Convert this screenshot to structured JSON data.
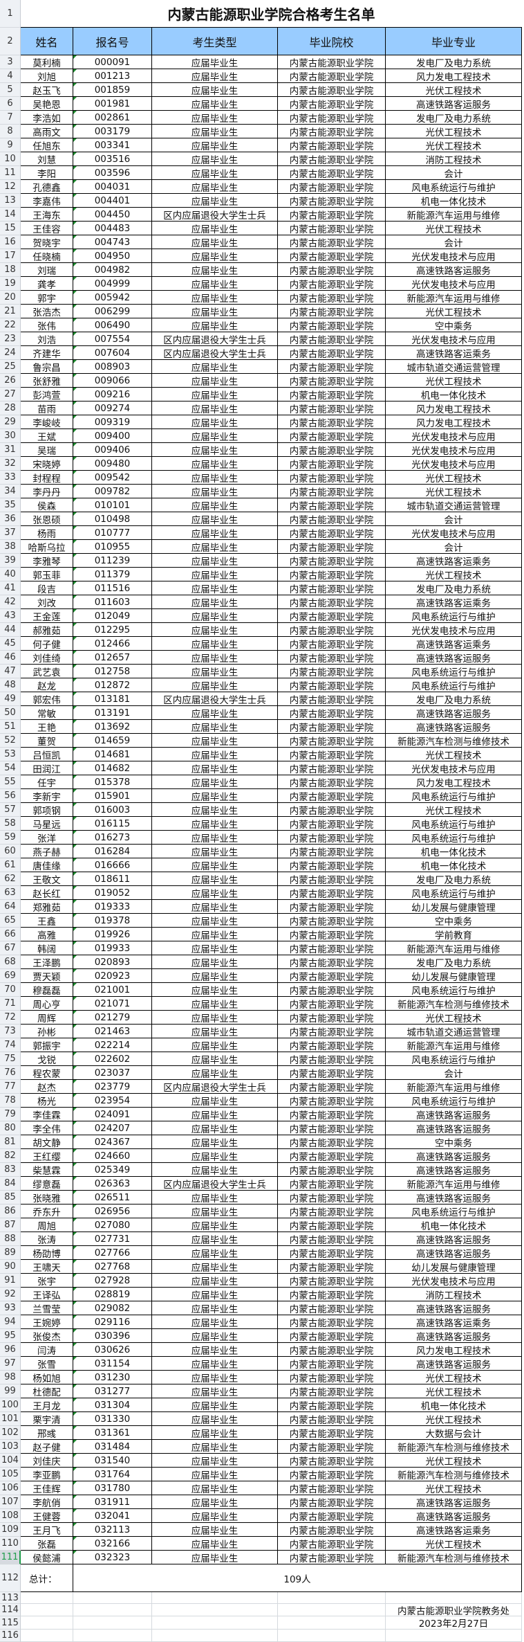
{
  "title": "内蒙古能源职业学院合格考生名单",
  "headers": [
    "姓名",
    "报名号",
    "考生类型",
    "毕业院校",
    "毕业专业"
  ],
  "colors": {
    "header_bg": "#99ccff",
    "active_row": "#1e9c4a",
    "comment_marker": "#1e8c2e"
  },
  "rows": [
    [
      3,
      "莫利楠",
      "000091",
      "应届毕业生",
      "内蒙古能源职业学院",
      "发电厂及电力系统"
    ],
    [
      4,
      "刘旭",
      "001213",
      "应届毕业生",
      "内蒙古能源职业学院",
      "风力发电工程技术"
    ],
    [
      5,
      "赵玉飞",
      "001859",
      "应届毕业生",
      "内蒙古能源职业学院",
      "光伏工程技术"
    ],
    [
      6,
      "吴艳恩",
      "001981",
      "应届毕业生",
      "内蒙古能源职业学院",
      "高速铁路客运服务"
    ],
    [
      7,
      "李浩如",
      "002861",
      "应届毕业生",
      "内蒙古能源职业学院",
      "发电厂及电力系统"
    ],
    [
      8,
      "高雨文",
      "003179",
      "应届毕业生",
      "内蒙古能源职业学院",
      "光伏工程技术"
    ],
    [
      9,
      "任旭东",
      "003341",
      "应届毕业生",
      "内蒙古能源职业学院",
      "光伏工程技术"
    ],
    [
      10,
      "刘慧",
      "003516",
      "应届毕业生",
      "内蒙古能源职业学院",
      "消防工程技术"
    ],
    [
      11,
      "李阳",
      "003596",
      "应届毕业生",
      "内蒙古能源职业学院",
      "会计"
    ],
    [
      12,
      "孔德鑫",
      "004031",
      "应届毕业生",
      "内蒙古能源职业学院",
      "风电系统运行与维护"
    ],
    [
      13,
      "李嘉伟",
      "004401",
      "应届毕业生",
      "内蒙古能源职业学院",
      "机电一体化技术"
    ],
    [
      14,
      "王海东",
      "004450",
      "区内应届退役大学生士兵",
      "内蒙古能源职业学院",
      "新能源汽车运用与维修"
    ],
    [
      15,
      "王佳容",
      "004483",
      "应届毕业生",
      "内蒙古能源职业学院",
      "光伏工程技术"
    ],
    [
      16,
      "贺晓宇",
      "004743",
      "应届毕业生",
      "内蒙古能源职业学院",
      "会计"
    ],
    [
      17,
      "任晓楠",
      "004950",
      "应届毕业生",
      "内蒙古能源职业学院",
      "光伏发电技术与应用"
    ],
    [
      18,
      "刘瑞",
      "004982",
      "应届毕业生",
      "内蒙古能源职业学院",
      "高速铁路客运服务"
    ],
    [
      19,
      "龚孝",
      "004999",
      "应届毕业生",
      "内蒙古能源职业学院",
      "光伏发电技术与应用"
    ],
    [
      20,
      "郭宇",
      "005942",
      "应届毕业生",
      "内蒙古能源职业学院",
      "新能源汽车运用与维修"
    ],
    [
      21,
      "张浩杰",
      "006299",
      "应届毕业生",
      "内蒙古能源职业学院",
      "光伏工程技术"
    ],
    [
      22,
      "张伟",
      "006490",
      "应届毕业生",
      "内蒙古能源职业学院",
      "空中乘务"
    ],
    [
      23,
      "刘浩",
      "007554",
      "区内应届退役大学生士兵",
      "内蒙古能源职业学院",
      "光伏发电技术与应用"
    ],
    [
      24,
      "齐建华",
      "007604",
      "区内应届退役大学生士兵",
      "内蒙古能源职业学院",
      "高速铁路客运乘务"
    ],
    [
      25,
      "鲁宗昌",
      "008903",
      "应届毕业生",
      "内蒙古能源职业学院",
      "城市轨道交通运营管理"
    ],
    [
      26,
      "张舒雅",
      "009066",
      "应届毕业生",
      "内蒙古能源职业学院",
      "光伏工程技术"
    ],
    [
      27,
      "彭鸿萱",
      "009216",
      "应届毕业生",
      "内蒙古能源职业学院",
      "机电一体化技术"
    ],
    [
      28,
      "苗雨",
      "009274",
      "应届毕业生",
      "内蒙古能源职业学院",
      "风力发电工程技术"
    ],
    [
      29,
      "李峻岐",
      "009319",
      "应届毕业生",
      "内蒙古能源职业学院",
      "风力发电工程技术"
    ],
    [
      30,
      "王斌",
      "009400",
      "应届毕业生",
      "内蒙古能源职业学院",
      "光伏发电技术与应用"
    ],
    [
      31,
      "吴瑞",
      "009406",
      "应届毕业生",
      "内蒙古能源职业学院",
      "光伏发电技术与应用"
    ],
    [
      32,
      "宋晓婷",
      "009480",
      "应届毕业生",
      "内蒙古能源职业学院",
      "光伏发电技术与应用"
    ],
    [
      33,
      "封程程",
      "009542",
      "应届毕业生",
      "内蒙古能源职业学院",
      "光伏工程技术"
    ],
    [
      34,
      "李丹丹",
      "009782",
      "应届毕业生",
      "内蒙古能源职业学院",
      "光伏工程技术"
    ],
    [
      35,
      "侯森",
      "010101",
      "应届毕业生",
      "内蒙古能源职业学院",
      "城市轨道交通运营管理"
    ],
    [
      36,
      "张恩硕",
      "010498",
      "应届毕业生",
      "内蒙古能源职业学院",
      "会计"
    ],
    [
      37,
      "杨雨",
      "010777",
      "应届毕业生",
      "内蒙古能源职业学院",
      "光伏发电技术与应用"
    ],
    [
      38,
      "哈斯乌拉",
      "010955",
      "应届毕业生",
      "内蒙古能源职业学院",
      "会计"
    ],
    [
      39,
      "李雅琴",
      "011239",
      "应届毕业生",
      "内蒙古能源职业学院",
      "高速铁路客运乘务"
    ],
    [
      40,
      "郭玉菲",
      "011379",
      "应届毕业生",
      "内蒙古能源职业学院",
      "光伏工程技术"
    ],
    [
      41,
      "段吉",
      "011516",
      "应届毕业生",
      "内蒙古能源职业学院",
      "发电厂及电力系统"
    ],
    [
      42,
      "刘改",
      "011603",
      "应届毕业生",
      "内蒙古能源职业学院",
      "高速铁路客运乘务"
    ],
    [
      43,
      "王金莲",
      "012049",
      "应届毕业生",
      "内蒙古能源职业学院",
      "风电系统运行与维护"
    ],
    [
      44,
      "郝雅茹",
      "012295",
      "应届毕业生",
      "内蒙古能源职业学院",
      "光伏发电技术与应用"
    ],
    [
      45,
      "何子健",
      "012466",
      "应届毕业生",
      "内蒙古能源职业学院",
      "高速铁路客运乘务"
    ],
    [
      46,
      "刘佳绮",
      "012657",
      "应届毕业生",
      "内蒙古能源职业学院",
      "高速铁路客运服务"
    ],
    [
      47,
      "武艺袁",
      "012758",
      "应届毕业生",
      "内蒙古能源职业学院",
      "风电系统运行与维护"
    ],
    [
      48,
      "赵龙",
      "012872",
      "应届毕业生",
      "内蒙古能源职业学院",
      "风电系统运行与维护"
    ],
    [
      49,
      "郭宏伟",
      "013181",
      "区内应届退役大学生士兵",
      "内蒙古能源职业学院",
      "发电厂及电力系统"
    ],
    [
      50,
      "常敏",
      "013191",
      "应届毕业生",
      "内蒙古能源职业学院",
      "高速铁路客运服务"
    ],
    [
      51,
      "王艳",
      "013692",
      "应届毕业生",
      "内蒙古能源职业学院",
      "高速铁路客运服务"
    ],
    [
      52,
      "董贺",
      "014659",
      "应届毕业生",
      "内蒙古能源职业学院",
      "新能源汽车检测与维修技术"
    ],
    [
      53,
      "吕恒凯",
      "014681",
      "应届毕业生",
      "内蒙古能源职业学院",
      "光伏工程技术"
    ],
    [
      54,
      "田润江",
      "014682",
      "应届毕业生",
      "内蒙古能源职业学院",
      "光伏发电技术与应用"
    ],
    [
      55,
      "任宇",
      "015378",
      "应届毕业生",
      "内蒙古能源职业学院",
      "风力发电工程技术"
    ],
    [
      56,
      "李新宇",
      "015901",
      "应届毕业生",
      "内蒙古能源职业学院",
      "风电系统运行与维护"
    ],
    [
      57,
      "郭项钢",
      "016003",
      "应届毕业生",
      "内蒙古能源职业学院",
      "光伏工程技术"
    ],
    [
      58,
      "马星远",
      "016115",
      "应届毕业生",
      "内蒙古能源职业学院",
      "风电系统运行与维护"
    ],
    [
      59,
      "张洋",
      "016273",
      "应届毕业生",
      "内蒙古能源职业学院",
      "风电系统运行与维护"
    ],
    [
      60,
      "燕子赫",
      "016284",
      "应届毕业生",
      "内蒙古能源职业学院",
      "机电一体化技术"
    ],
    [
      61,
      "唐佳缘",
      "016666",
      "应届毕业生",
      "内蒙古能源职业学院",
      "机电一体化技术"
    ],
    [
      62,
      "王敬文",
      "018611",
      "应届毕业生",
      "内蒙古能源职业学院",
      "发电厂及电力系统"
    ],
    [
      63,
      "赵长红",
      "019052",
      "应届毕业生",
      "内蒙古能源职业学院",
      "风电系统运行与维护"
    ],
    [
      64,
      "郑雅茹",
      "019333",
      "应届毕业生",
      "内蒙古能源职业学院",
      "幼儿发展与健康管理"
    ],
    [
      65,
      "王鑫",
      "019378",
      "应届毕业生",
      "内蒙古能源职业学院",
      "空中乘务"
    ],
    [
      66,
      "高雅",
      "019926",
      "应届毕业生",
      "内蒙古能源职业学院",
      "学前教育"
    ],
    [
      67,
      "韩阔",
      "019933",
      "应届毕业生",
      "内蒙古能源职业学院",
      "新能源汽车运用与维修"
    ],
    [
      68,
      "王泽鹏",
      "020893",
      "应届毕业生",
      "内蒙古能源职业学院",
      "发电厂及电力系统"
    ],
    [
      69,
      "贾天颖",
      "020923",
      "应届毕业生",
      "内蒙古能源职业学院",
      "幼儿发展与健康管理"
    ],
    [
      70,
      "穆磊磊",
      "021001",
      "应届毕业生",
      "内蒙古能源职业学院",
      "风电系统运行与维护"
    ],
    [
      71,
      "周心亨",
      "021071",
      "应届毕业生",
      "内蒙古能源职业学院",
      "新能源汽车检测与维修技术"
    ],
    [
      72,
      "周辉",
      "021279",
      "应届毕业生",
      "内蒙古能源职业学院",
      "光伏工程技术"
    ],
    [
      73,
      "孙彬",
      "021463",
      "应届毕业生",
      "内蒙古能源职业学院",
      "城市轨道交通运营管理"
    ],
    [
      74,
      "郭振宇",
      "022214",
      "应届毕业生",
      "内蒙古能源职业学院",
      "新能源汽车运用与维修"
    ],
    [
      75,
      "戈锐",
      "022602",
      "应届毕业生",
      "内蒙古能源职业学院",
      "风电系统运行与维护"
    ],
    [
      76,
      "程农蒙",
      "023037",
      "应届毕业生",
      "内蒙古能源职业学院",
      "会计"
    ],
    [
      77,
      "赵杰",
      "023779",
      "区内应届退役大学生士兵",
      "内蒙古能源职业学院",
      "新能源汽车运用与维修"
    ],
    [
      78,
      "杨光",
      "023954",
      "应届毕业生",
      "内蒙古能源职业学院",
      "风电系统运行与维护"
    ],
    [
      79,
      "李佳霖",
      "024091",
      "应届毕业生",
      "内蒙古能源职业学院",
      "高速铁路客运服务"
    ],
    [
      80,
      "李全伟",
      "024207",
      "应届毕业生",
      "内蒙古能源职业学院",
      "高速铁路客运服务"
    ],
    [
      81,
      "胡文静",
      "024367",
      "应届毕业生",
      "内蒙古能源职业学院",
      "空中乘务"
    ],
    [
      82,
      "王红缨",
      "024660",
      "应届毕业生",
      "内蒙古能源职业学院",
      "高速铁路客运服务"
    ],
    [
      83,
      "柴慧霖",
      "025349",
      "应届毕业生",
      "内蒙古能源职业学院",
      "高速铁路客运服务"
    ],
    [
      84,
      "缪意磊",
      "026363",
      "区内应届退役大学生士兵",
      "内蒙古能源职业学院",
      "新能源汽车运用与维修"
    ],
    [
      85,
      "张晓雅",
      "026511",
      "应届毕业生",
      "内蒙古能源职业学院",
      "高速铁路客运服务"
    ],
    [
      86,
      "乔东升",
      "026956",
      "应届毕业生",
      "内蒙古能源职业学院",
      "风电系统运行与维护"
    ],
    [
      87,
      "周旭",
      "027080",
      "应届毕业生",
      "内蒙古能源职业学院",
      "机电一体化技术"
    ],
    [
      88,
      "张涛",
      "027731",
      "应届毕业生",
      "内蒙古能源职业学院",
      "高速铁路客运服务"
    ],
    [
      89,
      "杨劭博",
      "027766",
      "应届毕业生",
      "内蒙古能源职业学院",
      "高速铁路客运服务"
    ],
    [
      90,
      "王啸天",
      "027768",
      "应届毕业生",
      "内蒙古能源职业学院",
      "幼儿发展与健康管理"
    ],
    [
      91,
      "张宇",
      "027928",
      "应届毕业生",
      "内蒙古能源职业学院",
      "光伏发电技术与应用"
    ],
    [
      92,
      "王译弘",
      "028819",
      "应届毕业生",
      "内蒙古能源职业学院",
      "消防工程技术"
    ],
    [
      93,
      "兰雪莹",
      "029082",
      "应届毕业生",
      "内蒙古能源职业学院",
      "高速铁路客运服务"
    ],
    [
      94,
      "王婉婷",
      "029116",
      "应届毕业生",
      "内蒙古能源职业学院",
      "高速铁路客运乘务"
    ],
    [
      95,
      "张俊杰",
      "030396",
      "应届毕业生",
      "内蒙古能源职业学院",
      "高速铁路客运服务"
    ],
    [
      96,
      "闫涛",
      "030626",
      "应届毕业生",
      "内蒙古能源职业学院",
      "风力发电工程技术"
    ],
    [
      97,
      "张雪",
      "031154",
      "应届毕业生",
      "内蒙古能源职业学院",
      "高速铁路客运服务"
    ],
    [
      98,
      "杨如旭",
      "031230",
      "应届毕业生",
      "内蒙古能源职业学院",
      "光伏工程技术"
    ],
    [
      99,
      "杜德配",
      "031277",
      "应届毕业生",
      "内蒙古能源职业学院",
      "光伏工程技术"
    ],
    [
      100,
      "王月龙",
      "031304",
      "应届毕业生",
      "内蒙古能源职业学院",
      "机电一体化技术"
    ],
    [
      101,
      "栗宇清",
      "031330",
      "应届毕业生",
      "内蒙古能源职业学院",
      "光伏工程技术"
    ],
    [
      102,
      "邢彧",
      "031361",
      "应届毕业生",
      "内蒙古能源职业学院",
      "大数据与会计"
    ],
    [
      103,
      "赵子健",
      "031484",
      "应届毕业生",
      "内蒙古能源职业学院",
      "新能源汽车检测与维修技术"
    ],
    [
      104,
      "刘佳庆",
      "031540",
      "应届毕业生",
      "内蒙古能源职业学院",
      "光伏工程技术"
    ],
    [
      105,
      "李亚鹏",
      "031764",
      "应届毕业生",
      "内蒙古能源职业学院",
      "新能源汽车检测与维修技术"
    ],
    [
      106,
      "王佳辉",
      "031780",
      "应届毕业生",
      "内蒙古能源职业学院",
      "光伏工程技术"
    ],
    [
      107,
      "李航俏",
      "031911",
      "应届毕业生",
      "内蒙古能源职业学院",
      "高速铁路客运服务"
    ],
    [
      108,
      "王健蓉",
      "032041",
      "应届毕业生",
      "内蒙古能源职业学院",
      "高速铁路客运服务"
    ],
    [
      109,
      "王月飞",
      "032113",
      "应届毕业生",
      "内蒙古能源职业学院",
      "高速铁路客运乘务"
    ],
    [
      110,
      "张磊",
      "032166",
      "应届毕业生",
      "内蒙古能源职业学院",
      "光伏工程技术"
    ],
    [
      111,
      "侯懿浦",
      "032323",
      "应届毕业生",
      "内蒙古能源职业学院",
      "新能源汽车检测与维修技术"
    ]
  ],
  "row_numbers": {
    "title": "1",
    "header": "2",
    "total": "112",
    "blank1": "113",
    "signature": "114",
    "date": "115",
    "blank2": "116"
  },
  "total": {
    "label": "总计：",
    "value": "109人"
  },
  "footer": {
    "office": "内蒙古能源职业学院教务处",
    "date": "2023年2月27日"
  }
}
